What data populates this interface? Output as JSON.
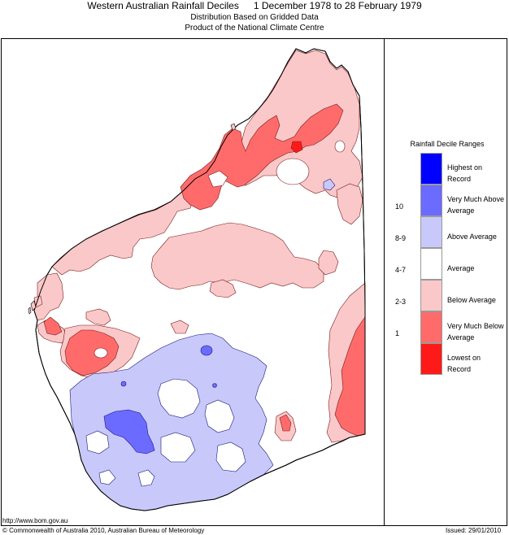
{
  "header": {
    "title_left": "Western Australian Rainfall Deciles",
    "title_right": "1 December 1978 to 28 February 1979",
    "subtitle_1": "Distribution Based on Gridded Data",
    "subtitle_2": "Product of the National Climate Centre"
  },
  "legend": {
    "title": "Rainfall Decile Ranges",
    "items": [
      {
        "range": "",
        "label": "Highest on Record",
        "color": "#0000ff"
      },
      {
        "range": "10",
        "label": "Very Much Above Average",
        "color": "#6b6bff"
      },
      {
        "range": "8-9",
        "label": "Above Average",
        "color": "#c8c8fa"
      },
      {
        "range": "4-7",
        "label": "Average",
        "color": "#ffffff"
      },
      {
        "range": "2-3",
        "label": "Below Average",
        "color": "#fac8c8"
      },
      {
        "range": "1",
        "label": "Very Much Below Average",
        "color": "#ff6b6b"
      },
      {
        "range": "",
        "label": "Lowest on Record",
        "color": "#ff1a1a"
      }
    ]
  },
  "footer": {
    "url": "http://www.bom.gov.au",
    "copyright": "© Commonwealth of Australia 2010, Australian Bureau of Meteorology",
    "issued": "Issued: 29/01/2010"
  }
}
